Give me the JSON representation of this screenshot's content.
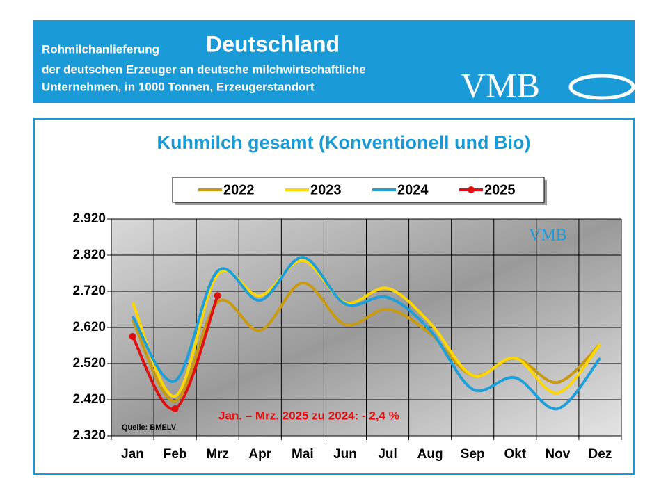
{
  "header": {
    "line1": "Rohmilchanlieferung",
    "country": "Deutschland",
    "line2": "der deutschen Erzeuger an deutsche milchwirtschaftliche",
    "line3": "Unternehmen, in 1000 Tonnen, Erzeugerstandort",
    "logo": "VMB"
  },
  "chart_data": {
    "type": "line",
    "title": "Kuhmilch gesamt (Konventionell und Bio)",
    "categories": [
      "Jan",
      "Feb",
      "Mrz",
      "Apr",
      "Mai",
      "Jun",
      "Jul",
      "Aug",
      "Sep",
      "Okt",
      "Nov",
      "Dez"
    ],
    "series": [
      {
        "name": "2022",
        "color": "#c89a10",
        "values": [
          2641,
          2416,
          2690,
          2612,
          2743,
          2628,
          2670,
          2603,
          2487,
          2535,
          2468,
          2574
        ]
      },
      {
        "name": "2023",
        "color": "#ffd700",
        "values": [
          2689,
          2430,
          2766,
          2708,
          2805,
          2689,
          2728,
          2632,
          2487,
          2535,
          2439,
          2574
        ]
      },
      {
        "name": "2024",
        "color": "#1e9fd8",
        "values": [
          2651,
          2472,
          2776,
          2695,
          2814,
          2685,
          2703,
          2612,
          2449,
          2481,
          2395,
          2535
        ]
      },
      {
        "name": "2025",
        "color": "#e01010",
        "values": [
          2595,
          2395,
          2708,
          null,
          null,
          null,
          null,
          null,
          null,
          null,
          null,
          null
        ]
      }
    ],
    "ylim": [
      2320,
      2920
    ],
    "yticks": [
      {
        "value": 2320,
        "label": "2.320"
      },
      {
        "value": 2420,
        "label": "2.420"
      },
      {
        "value": 2520,
        "label": "2.520"
      },
      {
        "value": 2620,
        "label": "2.620"
      },
      {
        "value": 2720,
        "label": "2.720"
      },
      {
        "value": 2820,
        "label": "2.820"
      },
      {
        "value": 2920,
        "label": "2.920"
      }
    ],
    "grid": true,
    "annotation": "Jan. – Mrz. 2025 zu 2024: - 2,4 %",
    "source": "Quelle:  BMELV"
  }
}
